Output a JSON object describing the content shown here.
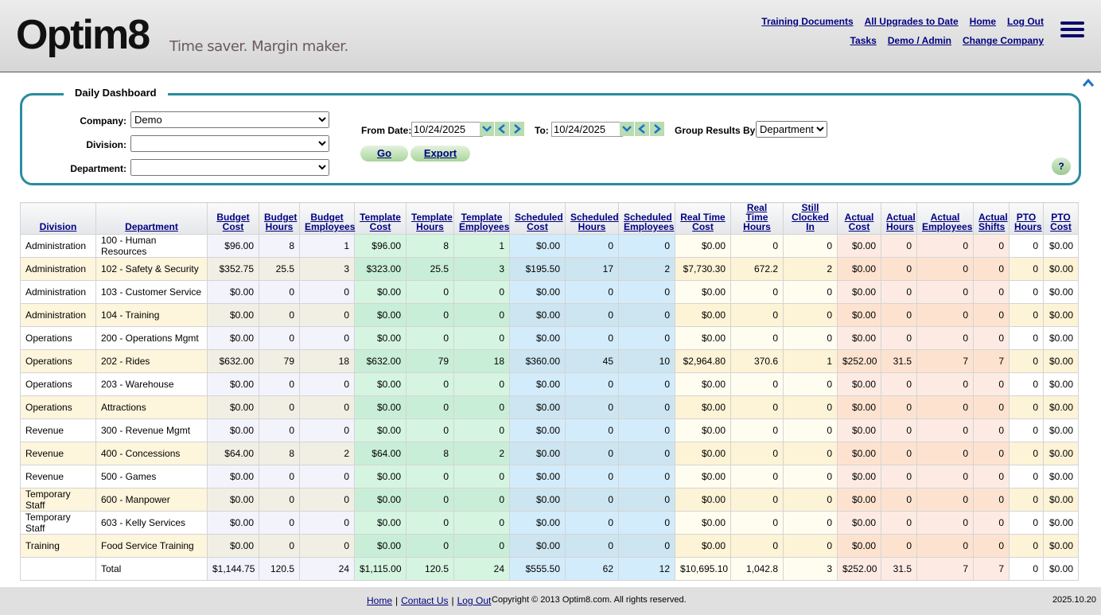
{
  "header": {
    "logo": "Optim8",
    "tagline": "Time saver. Margin maker.",
    "nav_row1": [
      "Training Documents",
      "All Upgrades to Date",
      "Home",
      "Log Out"
    ],
    "nav_row2": [
      "Tasks",
      "Demo / Admin",
      "Change Company"
    ]
  },
  "filters": {
    "title": "Daily Dashboard",
    "company_label": "Company:",
    "company_value": "Demo",
    "division_label": "Division:",
    "department_label": "Department:",
    "from_label": "From Date:",
    "from_value": "10/24/2025",
    "to_label": "To:",
    "to_value": "10/24/2025",
    "group_label": "Group Results By:",
    "group_value": "Department",
    "go": "Go",
    "export": "Export",
    "help": "?"
  },
  "table": {
    "columns": [
      [
        "Division"
      ],
      [
        "Department"
      ],
      [
        "Budget",
        "Cost"
      ],
      [
        "Budget",
        "Hours"
      ],
      [
        "Budget",
        "Employees"
      ],
      [
        "Template",
        "Cost"
      ],
      [
        "Template",
        "Hours"
      ],
      [
        "Template",
        "Employees"
      ],
      [
        "Scheduled",
        "Cost"
      ],
      [
        "Scheduled",
        "Hours"
      ],
      [
        "Scheduled",
        "Employees"
      ],
      [
        "Real Time",
        "Cost"
      ],
      [
        "Real Time",
        "Hours"
      ],
      [
        "Still",
        "Clocked In"
      ],
      [
        "Actual",
        "Cost"
      ],
      [
        "Actual",
        "Hours"
      ],
      [
        "Actual",
        "Employees"
      ],
      [
        "Actual",
        "Shifts"
      ],
      [
        "PTO",
        "Hours"
      ],
      [
        "PTO",
        "Cost"
      ]
    ],
    "rows": [
      [
        "Administration",
        "100 - Human Resources",
        "$96.00",
        "8",
        "1",
        "$96.00",
        "8",
        "1",
        "$0.00",
        "0",
        "0",
        "$0.00",
        "0",
        "0",
        "$0.00",
        "0",
        "0",
        "0",
        "0",
        "$0.00"
      ],
      [
        "Administration",
        "102 - Safety & Security",
        "$352.75",
        "25.5",
        "3",
        "$323.00",
        "25.5",
        "3",
        "$195.50",
        "17",
        "2",
        "$7,730.30",
        "672.2",
        "2",
        "$0.00",
        "0",
        "0",
        "0",
        "0",
        "$0.00"
      ],
      [
        "Administration",
        "103 - Customer Service",
        "$0.00",
        "0",
        "0",
        "$0.00",
        "0",
        "0",
        "$0.00",
        "0",
        "0",
        "$0.00",
        "0",
        "0",
        "$0.00",
        "0",
        "0",
        "0",
        "0",
        "$0.00"
      ],
      [
        "Administration",
        "104 - Training",
        "$0.00",
        "0",
        "0",
        "$0.00",
        "0",
        "0",
        "$0.00",
        "0",
        "0",
        "$0.00",
        "0",
        "0",
        "$0.00",
        "0",
        "0",
        "0",
        "0",
        "$0.00"
      ],
      [
        "Operations",
        "200 - Operations Mgmt",
        "$0.00",
        "0",
        "0",
        "$0.00",
        "0",
        "0",
        "$0.00",
        "0",
        "0",
        "$0.00",
        "0",
        "0",
        "$0.00",
        "0",
        "0",
        "0",
        "0",
        "$0.00"
      ],
      [
        "Operations",
        "202 - Rides",
        "$632.00",
        "79",
        "18",
        "$632.00",
        "79",
        "18",
        "$360.00",
        "45",
        "10",
        "$2,964.80",
        "370.6",
        "1",
        "$252.00",
        "31.5",
        "7",
        "7",
        "0",
        "$0.00"
      ],
      [
        "Operations",
        "203 - Warehouse",
        "$0.00",
        "0",
        "0",
        "$0.00",
        "0",
        "0",
        "$0.00",
        "0",
        "0",
        "$0.00",
        "0",
        "0",
        "$0.00",
        "0",
        "0",
        "0",
        "0",
        "$0.00"
      ],
      [
        "Operations",
        "Attractions",
        "$0.00",
        "0",
        "0",
        "$0.00",
        "0",
        "0",
        "$0.00",
        "0",
        "0",
        "$0.00",
        "0",
        "0",
        "$0.00",
        "0",
        "0",
        "0",
        "0",
        "$0.00"
      ],
      [
        "Revenue",
        "300 - Revenue Mgmt",
        "$0.00",
        "0",
        "0",
        "$0.00",
        "0",
        "0",
        "$0.00",
        "0",
        "0",
        "$0.00",
        "0",
        "0",
        "$0.00",
        "0",
        "0",
        "0",
        "0",
        "$0.00"
      ],
      [
        "Revenue",
        "400 - Concessions",
        "$64.00",
        "8",
        "2",
        "$64.00",
        "8",
        "2",
        "$0.00",
        "0",
        "0",
        "$0.00",
        "0",
        "0",
        "$0.00",
        "0",
        "0",
        "0",
        "0",
        "$0.00"
      ],
      [
        "Revenue",
        "500 - Games",
        "$0.00",
        "0",
        "0",
        "$0.00",
        "0",
        "0",
        "$0.00",
        "0",
        "0",
        "$0.00",
        "0",
        "0",
        "$0.00",
        "0",
        "0",
        "0",
        "0",
        "$0.00"
      ],
      [
        "Temporary Staff",
        "600 - Manpower",
        "$0.00",
        "0",
        "0",
        "$0.00",
        "0",
        "0",
        "$0.00",
        "0",
        "0",
        "$0.00",
        "0",
        "0",
        "$0.00",
        "0",
        "0",
        "0",
        "0",
        "$0.00"
      ],
      [
        "Temporary Staff",
        "603 - Kelly Services",
        "$0.00",
        "0",
        "0",
        "$0.00",
        "0",
        "0",
        "$0.00",
        "0",
        "0",
        "$0.00",
        "0",
        "0",
        "$0.00",
        "0",
        "0",
        "0",
        "0",
        "$0.00"
      ],
      [
        "Training",
        "Food Service Training",
        "$0.00",
        "0",
        "0",
        "$0.00",
        "0",
        "0",
        "$0.00",
        "0",
        "0",
        "$0.00",
        "0",
        "0",
        "$0.00",
        "0",
        "0",
        "0",
        "0",
        "$0.00"
      ]
    ],
    "total": {
      "label": "Total",
      "values": [
        "$1,144.75",
        "120.5",
        "24",
        "$1,115.00",
        "120.5",
        "24",
        "$555.50",
        "62",
        "12",
        "$10,695.10",
        "1,042.8",
        "3",
        "$252.00",
        "31.5",
        "7",
        "7",
        "0",
        "$0.00"
      ]
    }
  },
  "footer": {
    "links": [
      "Home",
      "Contact Us",
      "Log Out"
    ],
    "separator": "|",
    "copyright": "Copyright © 2013 Optim8.com. All rights reserved.",
    "version": "2025.10.20"
  }
}
